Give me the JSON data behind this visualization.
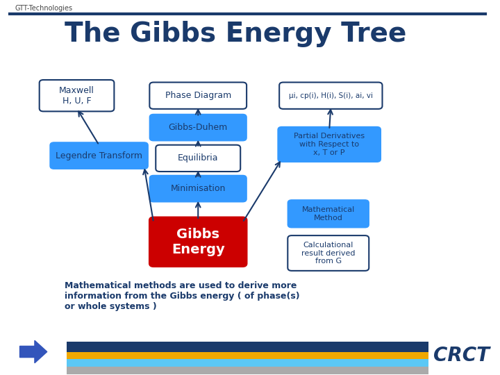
{
  "title": "The Gibbs Energy Tree",
  "gtt_label": "GTT-Technologies",
  "bg_color": "#ffffff",
  "header_bar_color": "#1a3a6b",
  "title_color": "#1a3a6b",
  "title_fontsize": 28,
  "blue_box_color": "#3399ff",
  "blue_box_text_color": "#1a3a6b",
  "white_box_color": "#ffffff",
  "white_box_border_color": "#1a3a6b",
  "red_box_color": "#cc0000",
  "red_box_text_color": "#ffffff",
  "arrow_color": "#1a3a6b",
  "bottom_text": "Mathematical methods are used to derive more\ninformation from the Gibbs energy ( of phase(s)\nor whole systems )",
  "bottom_text_color": "#1a3a6b",
  "crct_color": "#1a3a6b",
  "footer_stripe_colors": [
    "#1a3a6b",
    "#f0a800",
    "#5bc8f5",
    "#aaaaaa"
  ],
  "gtt_color": "#3355aa"
}
